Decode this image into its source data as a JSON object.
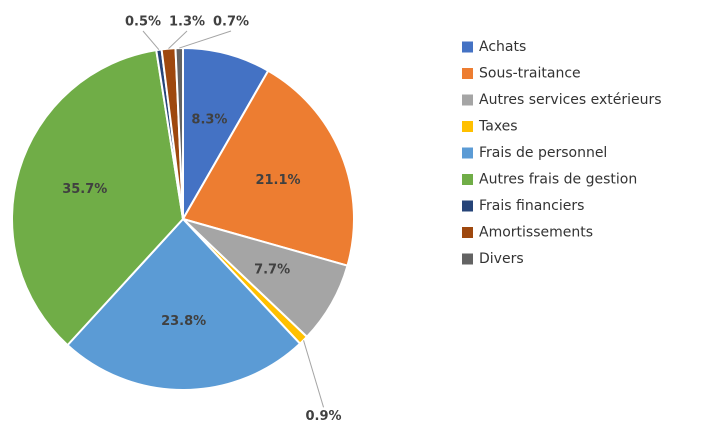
{
  "chart_data": {
    "type": "pie",
    "categories": [
      "Achats",
      "Sous-traitance",
      "Autres services extérieurs",
      "Taxes",
      "Frais de personnel",
      "Autres frais de gestion",
      "Frais financiers",
      "Amortissements",
      "Divers"
    ],
    "values": [
      8.3,
      21.1,
      7.7,
      0.9,
      23.8,
      35.7,
      0.5,
      1.3,
      0.7
    ],
    "value_labels": [
      "8.3%",
      "21.1%",
      "7.7%",
      "0.9%",
      "23.8%",
      "35.7%",
      "0.5%",
      "1.3%",
      "0.7%"
    ],
    "colors": [
      "#4472c4",
      "#ed7d31",
      "#a5a5a5",
      "#ffc000",
      "#5b9bd5",
      "#70ad47",
      "#264478",
      "#9e480e",
      "#636363"
    ],
    "legend": "right"
  }
}
